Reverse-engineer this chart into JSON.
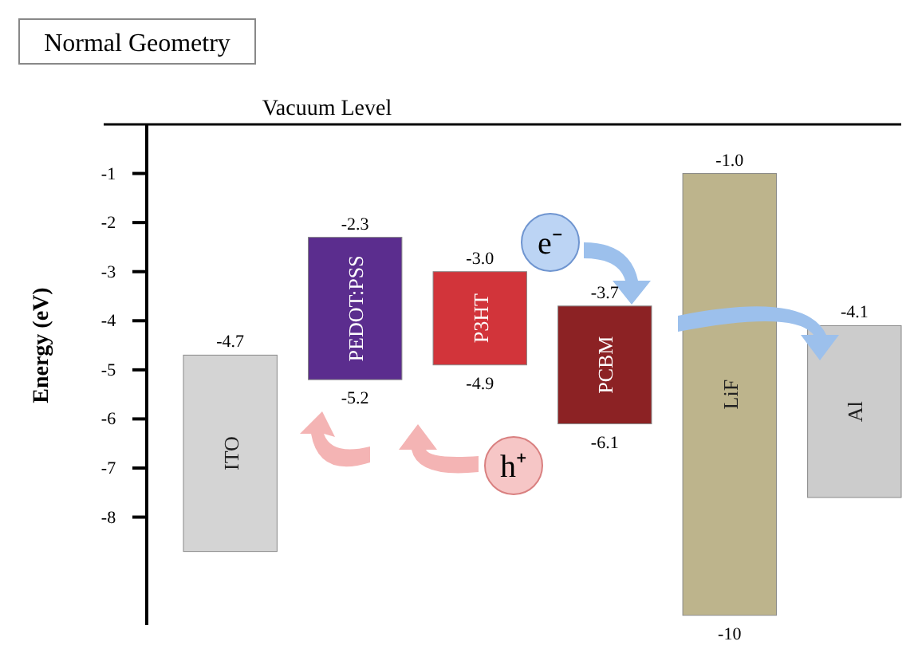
{
  "chart_data": {
    "type": "bar",
    "title": "Normal Geometry",
    "ylabel": "Energy (eV)",
    "categories": [
      "ITO",
      "PEDOT:PSS",
      "P3HT",
      "PCBM",
      "LiF",
      "Al"
    ],
    "values": [
      4.0,
      2.9,
      1.9,
      2.4,
      9.0,
      3.5
    ],
    "base": [
      -8.7,
      -5.2,
      -4.9,
      -6.1,
      -10,
      -7.6
    ],
    "colors": [
      "#d4d4d4",
      "#5b2d8e",
      "#d2343a",
      "#8c2224",
      "#bdb48c",
      "#cccccc"
    ],
    "ylim": [
      -10.2,
      0
    ],
    "yticks": [
      -1,
      -2,
      -3,
      -4,
      -5,
      -6,
      -7,
      -8
    ],
    "ref_lines": [
      {
        "axis": "y",
        "value": 0,
        "label": "Vacuum Level",
        "color": "#000000"
      }
    ],
    "annotations": [
      "e⁻",
      "h⁺",
      {
        "text": "-4.7",
        "x": "ITO",
        "y": -4.7
      },
      {
        "text": "-2.3",
        "x": "PEDOT:PSS",
        "y": -2.3
      },
      {
        "text": "-5.2",
        "x": "PEDOT:PSS",
        "y": -5.2
      },
      {
        "text": "-3.0",
        "x": "P3HT",
        "y": -3.0
      },
      {
        "text": "-4.9",
        "x": "P3HT",
        "y": -4.9
      },
      {
        "text": "-3.7",
        "x": "PCBM",
        "y": -3.7
      },
      {
        "text": "-6.1",
        "x": "PCBM",
        "y": -6.1
      },
      {
        "text": "-1.0",
        "x": "LiF",
        "y": -1.0
      },
      {
        "text": "-10",
        "x": "LiF",
        "y": -10
      },
      {
        "text": "-4.1",
        "x": "Al",
        "y": -4.1
      }
    ]
  }
}
